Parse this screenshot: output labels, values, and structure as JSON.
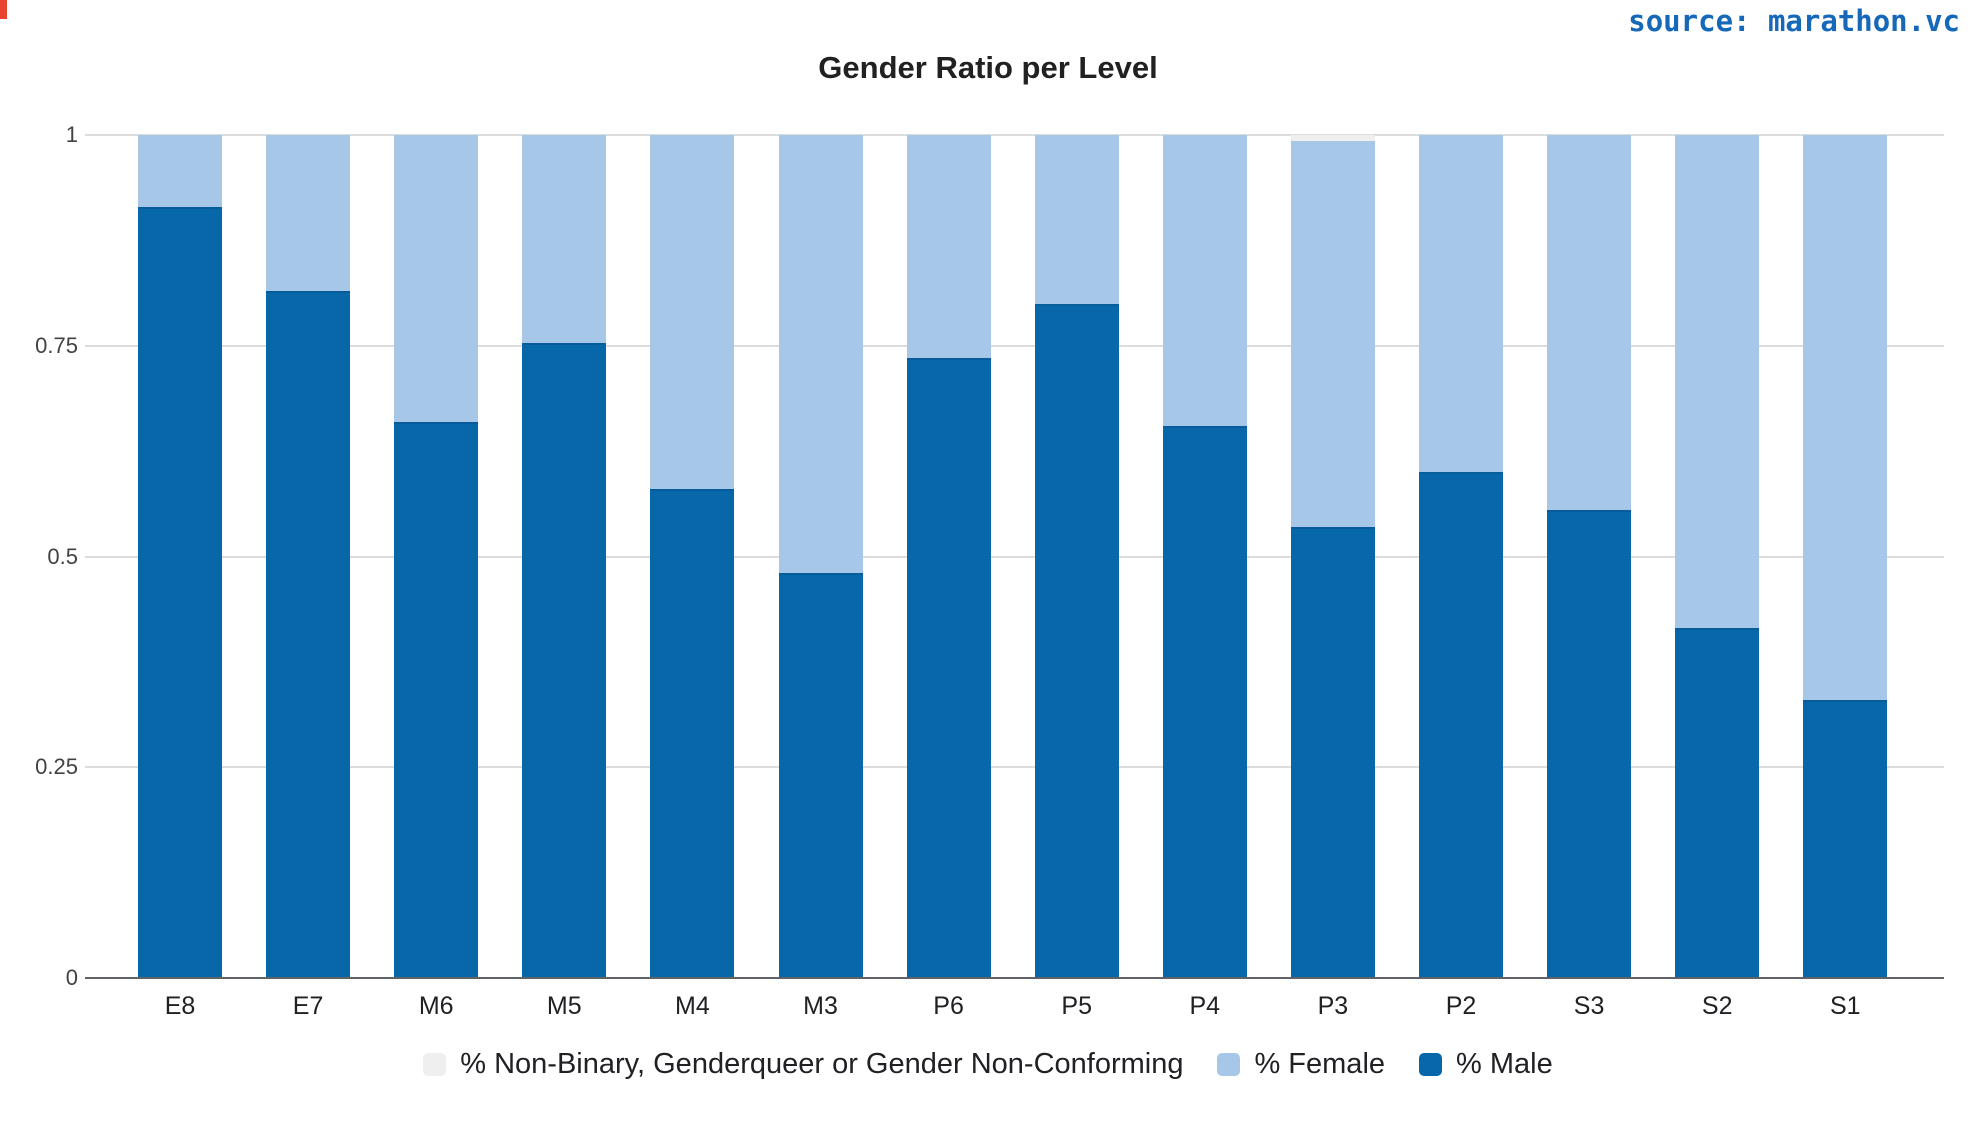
{
  "header": {
    "source": "source: marathon.vc"
  },
  "chart_data": {
    "type": "bar",
    "variant": "stacked-normalized-vertical",
    "title": "Gender Ratio per Level",
    "xlabel": "",
    "ylabel": "",
    "ylim": [
      0,
      1
    ],
    "grid": true,
    "legend_position": "bottom",
    "categories": [
      "E8",
      "E7",
      "M6",
      "M5",
      "M4",
      "M3",
      "P6",
      "P5",
      "P4",
      "P3",
      "P2",
      "S3",
      "S2",
      "S1"
    ],
    "series": [
      {
        "key": "male",
        "name": "% Male",
        "color": "#0767a8",
        "values": [
          0.915,
          0.815,
          0.66,
          0.753,
          0.58,
          0.48,
          0.735,
          0.8,
          0.655,
          0.535,
          0.6,
          0.555,
          0.415,
          0.33
        ]
      },
      {
        "key": "female",
        "name": "% Female",
        "color": "#a6c7e8",
        "values": [
          0.085,
          0.185,
          0.34,
          0.247,
          0.42,
          0.52,
          0.265,
          0.2,
          0.345,
          0.458,
          0.4,
          0.445,
          0.585,
          0.67
        ]
      },
      {
        "key": "nonbinary",
        "name": "% Non-Binary, Genderqueer or Gender Non-Conforming",
        "color": "#efefef",
        "values": [
          0,
          0,
          0,
          0,
          0,
          0,
          0,
          0,
          0,
          0.007,
          0,
          0,
          0,
          0
        ]
      }
    ],
    "legend_order": [
      2,
      1,
      0
    ],
    "y_axis": {
      "ticks": [
        {
          "label": "0",
          "value": 0
        },
        {
          "label": "0.25",
          "value": 0.25
        },
        {
          "label": "0.5",
          "value": 0.5
        },
        {
          "label": "0.75",
          "value": 0.75
        },
        {
          "label": "1",
          "value": 1
        }
      ]
    }
  }
}
